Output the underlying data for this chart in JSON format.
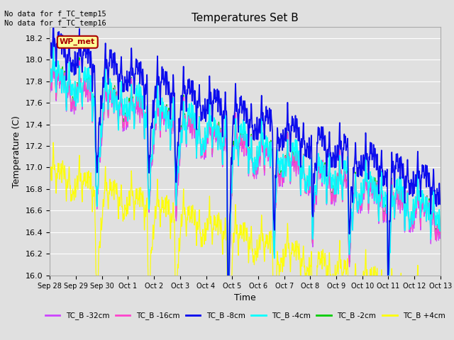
{
  "title": "Temperatures Set B",
  "xlabel": "Time",
  "ylabel": "Temperature (C)",
  "ylim": [
    16.0,
    18.3
  ],
  "yticks": [
    16.0,
    16.2,
    16.4,
    16.6,
    16.8,
    17.0,
    17.2,
    17.4,
    17.6,
    17.8,
    18.0,
    18.2
  ],
  "xtick_labels": [
    "Sep 28",
    "Sep 29",
    "Sep 30",
    "Oct 1",
    "Oct 2",
    "Oct 3",
    "Oct 4",
    "Oct 5",
    "Oct 6",
    "Oct 7",
    "Oct 8",
    "Oct 9",
    "Oct 10",
    "Oct 11",
    "Oct 12",
    "Oct 13"
  ],
  "annotation_text": "No data for f_TC_temp15\nNo data for f_TC_temp16",
  "wp_met_label": "WP_met",
  "wp_met_color": "#aa0000",
  "wp_met_bg": "#ffff99",
  "series_colors": [
    "#cc44ff",
    "#ff44cc",
    "#0000ee",
    "#00ffff",
    "#00cc00",
    "#ffff00"
  ],
  "series_labels": [
    "TC_B -32cm",
    "TC_B -16cm",
    "TC_B -8cm",
    "TC_B -4cm",
    "TC_B -2cm",
    "TC_B +4cm"
  ],
  "background_color": "#e0e0e0",
  "plot_bg_color": "#e0e0e0",
  "grid_color": "#ffffff",
  "num_points": 7200,
  "end_day": 15.0
}
